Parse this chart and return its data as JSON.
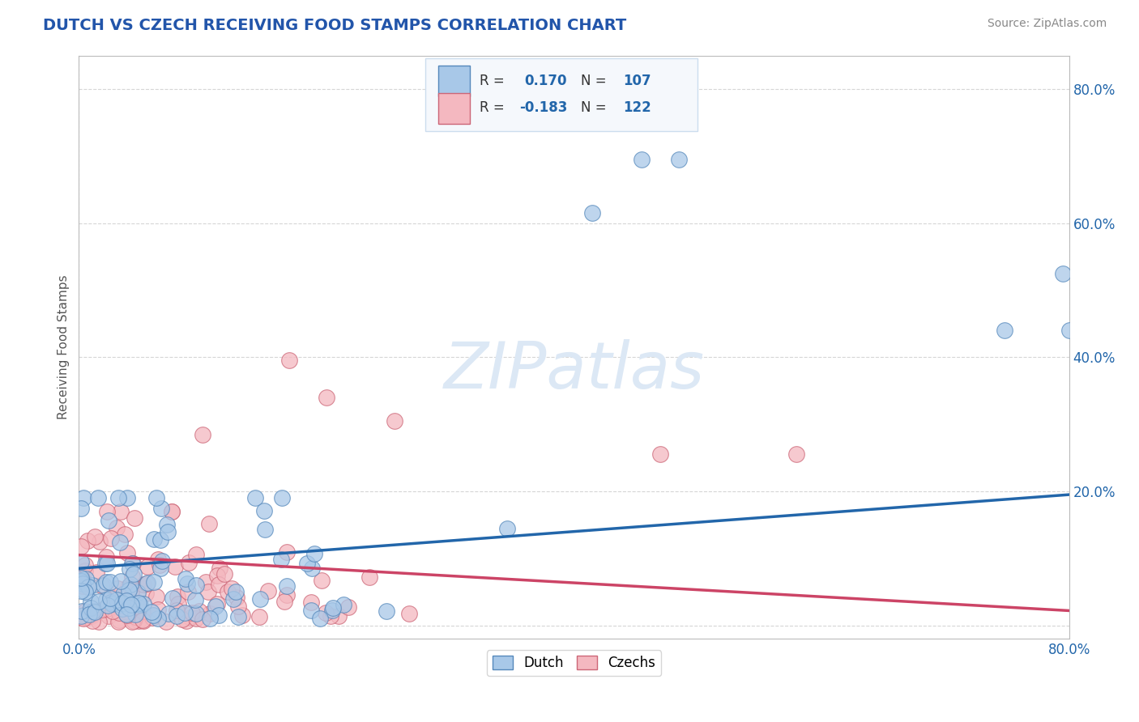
{
  "title": "DUTCH VS CZECH RECEIVING FOOD STAMPS CORRELATION CHART",
  "source_text": "Source: ZipAtlas.com",
  "ylabel": "Receiving Food Stamps",
  "ytick_values": [
    0.0,
    0.2,
    0.4,
    0.6,
    0.8
  ],
  "ytick_labels": [
    "",
    "20.0%",
    "40.0%",
    "60.0%",
    "80.0%"
  ],
  "xlim": [
    0.0,
    0.8
  ],
  "ylim": [
    -0.02,
    0.85
  ],
  "dutch_color": "#a8c8e8",
  "czech_color": "#f4b8c0",
  "dutch_edge_color": "#5588bb",
  "czech_edge_color": "#cc6677",
  "dutch_line_color": "#2266aa",
  "czech_line_color": "#cc4466",
  "title_color": "#2255aa",
  "title_fontsize": 14,
  "source_fontsize": 10,
  "watermark_text": "ZIPatlas",
  "watermark_color": "#dce8f5",
  "background_color": "#ffffff",
  "grid_color": "#cccccc",
  "legend_box_color": "#f5f8fc",
  "legend_edge_color": "#ccddee",
  "tick_label_color": "#2266aa",
  "dutch_line_y0": 0.085,
  "dutch_line_y1": 0.195,
  "czech_line_y0": 0.105,
  "czech_line_y1": 0.022
}
